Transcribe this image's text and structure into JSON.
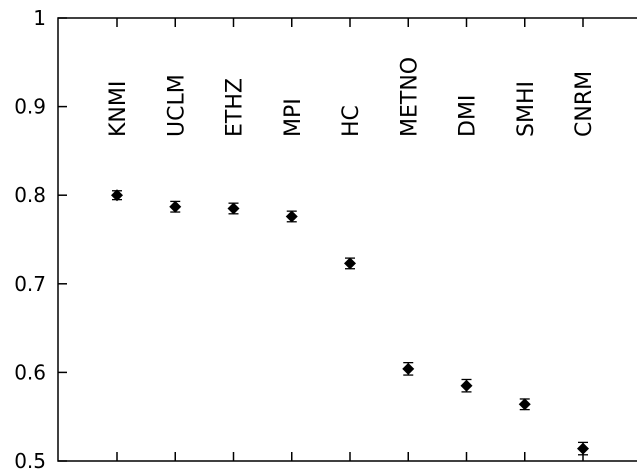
{
  "chart_data": {
    "type": "scatter",
    "categories": [
      "KNMI",
      "UCLM",
      "ETHZ",
      "MPI",
      "HC",
      "METNO",
      "DMI",
      "SMHI",
      "CNRM"
    ],
    "values": [
      0.8,
      0.787,
      0.785,
      0.776,
      0.723,
      0.604,
      0.585,
      0.564,
      0.514
    ],
    "errors": [
      0.005,
      0.006,
      0.006,
      0.006,
      0.006,
      0.007,
      0.007,
      0.006,
      0.007
    ],
    "ylim": [
      0.5,
      1.0
    ],
    "yticks": [
      "0.5",
      "0.6",
      "0.7",
      "0.8",
      "0.9",
      "1"
    ],
    "title": "",
    "xlabel": "",
    "ylabel": "",
    "marker": "diamond",
    "color": "#000000",
    "grid": false
  }
}
